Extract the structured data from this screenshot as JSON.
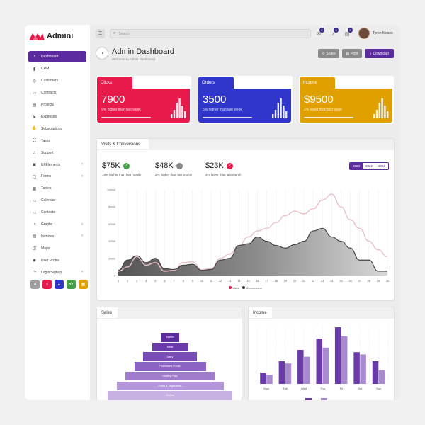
{
  "brand": {
    "name": "Admini"
  },
  "sidebar": {
    "items": [
      {
        "label": "Dashboard",
        "icon": "dashboard-icon",
        "glyph": "◔",
        "active": true
      },
      {
        "label": "CRM",
        "icon": "chart-icon",
        "glyph": "▮"
      },
      {
        "label": "Customers",
        "icon": "globe-icon",
        "glyph": "◎"
      },
      {
        "label": "Contracts",
        "icon": "document-icon",
        "glyph": "▭"
      },
      {
        "label": "Projects",
        "icon": "folder-icon",
        "glyph": "▤"
      },
      {
        "label": "Expenses",
        "icon": "send-icon",
        "glyph": "➤"
      },
      {
        "label": "Subscriptions",
        "icon": "hand-icon",
        "glyph": "✋"
      },
      {
        "label": "Tasks",
        "icon": "clipboard-icon",
        "glyph": "☷"
      },
      {
        "label": "Support",
        "icon": "headset-icon",
        "glyph": "♫"
      },
      {
        "label": "UI Elements",
        "icon": "layers-icon",
        "glyph": "▣",
        "chevron": true
      },
      {
        "label": "Forms",
        "icon": "form-icon",
        "glyph": "▢",
        "chevron": true
      },
      {
        "label": "Tables",
        "icon": "table-icon",
        "glyph": "▦"
      },
      {
        "label": "Calendar",
        "icon": "calendar-icon",
        "glyph": "▭"
      },
      {
        "label": "Contacts",
        "icon": "contact-icon",
        "glyph": "▭"
      },
      {
        "label": "Graphs",
        "icon": "graph-icon",
        "glyph": "◔",
        "chevron": true
      },
      {
        "label": "Invoices",
        "icon": "invoice-icon",
        "glyph": "▤",
        "chevron": true
      },
      {
        "label": "Maps",
        "icon": "map-icon",
        "glyph": "◫"
      },
      {
        "label": "User Profile",
        "icon": "user-icon",
        "glyph": "◉"
      },
      {
        "label": "Login/Signup",
        "icon": "login-icon",
        "glyph": "⤳",
        "chevron": true
      }
    ],
    "theme_swatches": [
      {
        "color": "#9e9e9e",
        "icon": "person-icon",
        "glyph": "●"
      },
      {
        "color": "#e8194b",
        "icon": "circle-icon",
        "glyph": "○"
      },
      {
        "color": "#2f36c9",
        "icon": "triangle-icon",
        "glyph": "▲"
      },
      {
        "color": "#43a047",
        "icon": "gear-icon",
        "glyph": "✿"
      },
      {
        "color": "#e0a000",
        "icon": "grid-icon",
        "glyph": "▦"
      }
    ]
  },
  "topbar": {
    "search_placeholder": "Search",
    "notifications": [
      {
        "icon": "chat-icon",
        "glyph": "✉",
        "badge": "2"
      },
      {
        "icon": "bell-icon",
        "glyph": "♪",
        "badge": "3"
      },
      {
        "icon": "inbox-icon",
        "glyph": "▤",
        "badge": "3"
      }
    ],
    "user_name": "Tyron Moses"
  },
  "page": {
    "title": "Admin Dashboard",
    "subtitle": "Welcome to Admin Dashboard",
    "buttons": {
      "share": "Share",
      "print": "Print",
      "download": "Download"
    }
  },
  "stats": [
    {
      "label": "Clicks",
      "value": "7900",
      "sub": "9% higher than last week",
      "color": "#e8194b",
      "dark": "#c4123c"
    },
    {
      "label": "Orders",
      "value": "3500",
      "sub": "5% higher than last week",
      "color": "#2f36c9",
      "dark": "#232aa6"
    },
    {
      "label": "Income",
      "value": "$9500",
      "sub": "2% lower than last week",
      "color": "#e0a000",
      "dark": "#c08800"
    }
  ],
  "visits": {
    "tab": "Visits & Conversions",
    "kpis": [
      {
        "value": "$75K",
        "sub": "18% higher than last month",
        "color": "#43a047",
        "glyph": "↗"
      },
      {
        "value": "$48K",
        "sub": "2% higher than last month",
        "color": "#888888",
        "glyph": "→"
      },
      {
        "value": "$23K",
        "sub": "3% lower than last month",
        "color": "#e8194b",
        "glyph": "↙"
      }
    ],
    "years": [
      "2023",
      "2022",
      "2021"
    ],
    "active_year": "2023"
  },
  "chart_data": [
    {
      "type": "area",
      "ylim": [
        0,
        100000
      ],
      "yticks": [
        "100000",
        "80000",
        "60000",
        "40000",
        "20000",
        "0"
      ],
      "x": [
        "1",
        "2",
        "3",
        "4",
        "5",
        "6",
        "7",
        "8",
        "9",
        "10",
        "11",
        "12",
        "13",
        "14",
        "15",
        "16",
        "17",
        "18",
        "19",
        "20",
        "21",
        "22",
        "23",
        "24",
        "25",
        "26",
        "27",
        "28",
        "29",
        "30"
      ],
      "series": [
        {
          "name": "Visits",
          "color": "#e8c0c6",
          "values": [
            5000,
            10000,
            22000,
            12000,
            15000,
            5000,
            6000,
            15000,
            16000,
            7000,
            8000,
            20000,
            25000,
            35000,
            45000,
            52000,
            55000,
            62000,
            70000,
            75000,
            72000,
            78000,
            88000,
            95000,
            80000,
            65000,
            55000,
            40000,
            30000,
            22000
          ]
        },
        {
          "name": "Conversions",
          "color": "#444444",
          "values": [
            6000,
            18000,
            23000,
            15000,
            20000,
            8000,
            7000,
            12000,
            13000,
            6000,
            7000,
            18000,
            20000,
            35000,
            37000,
            45000,
            40000,
            35000,
            32000,
            36000,
            40000,
            52000,
            55000,
            45000,
            40000,
            32000,
            18000,
            18000,
            5000,
            5000
          ]
        }
      ]
    },
    {
      "type": "bar",
      "categories": [
        "Mon",
        "Tue",
        "Wed",
        "Thu",
        "Fri",
        "Sat",
        "Sun"
      ],
      "series": [
        {
          "name": "",
          "color": "#6a3aa8",
          "values": [
            10,
            20,
            30,
            40,
            50,
            28,
            20
          ]
        },
        {
          "name": "",
          "color": "#a98ad0",
          "values": [
            8,
            18,
            24,
            32,
            42,
            26,
            12
          ]
        }
      ]
    }
  ],
  "sales": {
    "tab": "Sales",
    "funnel": [
      "Sweets",
      "Meat",
      "Dairy",
      "Processed Foods",
      "Healthy Fats",
      "Fruits & Vegetables",
      "Grains"
    ]
  },
  "income": {
    "tab": "Income"
  }
}
